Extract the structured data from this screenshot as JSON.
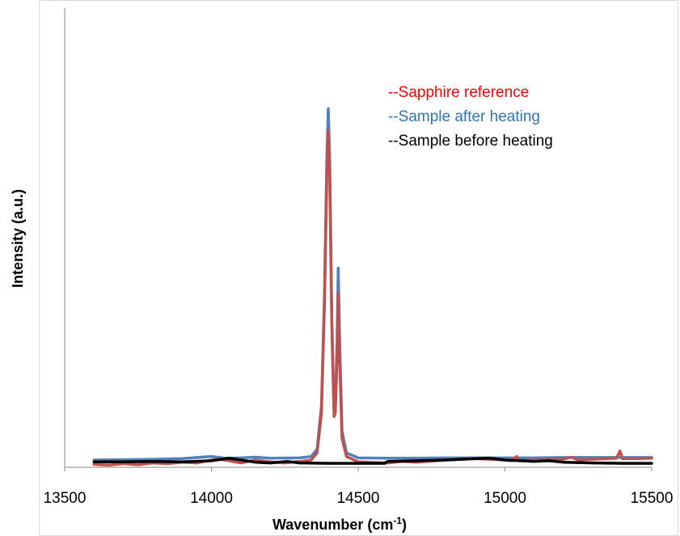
{
  "chart_data": {
    "type": "line",
    "title": "",
    "xlabel": "Wavenumber (cm",
    "xlabel_sup": "-1",
    "xlabel_tail": ")",
    "ylabel": "Intensity (a.u.)",
    "xlim": [
      13500,
      15500
    ],
    "ylim": [
      0,
      1.0
    ],
    "x_ticks": [
      "13500",
      "14000",
      "14500",
      "15000",
      "15500"
    ],
    "x_tick_values": [
      13500,
      14000,
      14500,
      15000,
      15500
    ],
    "y_ticks_shown": false,
    "grid": false,
    "legend_placement": "top-right",
    "series": [
      {
        "name": "--Sapphire reference",
        "color": "#c0504d",
        "points": [
          [
            13600,
            0.008
          ],
          [
            13650,
            0.006
          ],
          [
            13700,
            0.01
          ],
          [
            13750,
            0.007
          ],
          [
            13800,
            0.012
          ],
          [
            13850,
            0.01
          ],
          [
            13900,
            0.014
          ],
          [
            13950,
            0.012
          ],
          [
            14000,
            0.02
          ],
          [
            14030,
            0.022
          ],
          [
            14060,
            0.018
          ],
          [
            14100,
            0.012
          ],
          [
            14150,
            0.02
          ],
          [
            14200,
            0.015
          ],
          [
            14250,
            0.012
          ],
          [
            14300,
            0.016
          ],
          [
            14340,
            0.02
          ],
          [
            14360,
            0.04
          ],
          [
            14375,
            0.15
          ],
          [
            14385,
            0.45
          ],
          [
            14393,
            0.8
          ],
          [
            14398,
            0.93
          ],
          [
            14403,
            0.8
          ],
          [
            14410,
            0.4
          ],
          [
            14418,
            0.14
          ],
          [
            14422,
            0.15
          ],
          [
            14428,
            0.3
          ],
          [
            14432,
            0.48
          ],
          [
            14437,
            0.3
          ],
          [
            14445,
            0.08
          ],
          [
            14460,
            0.03
          ],
          [
            14500,
            0.015
          ],
          [
            14600,
            0.012
          ],
          [
            14650,
            0.016
          ],
          [
            14700,
            0.014
          ],
          [
            14800,
            0.02
          ],
          [
            14900,
            0.024
          ],
          [
            14950,
            0.022
          ],
          [
            15000,
            0.02
          ],
          [
            15020,
            0.018
          ],
          [
            15040,
            0.03
          ],
          [
            15050,
            0.018
          ],
          [
            15100,
            0.02
          ],
          [
            15200,
            0.022
          ],
          [
            15225,
            0.028
          ],
          [
            15250,
            0.02
          ],
          [
            15300,
            0.022
          ],
          [
            15350,
            0.024
          ],
          [
            15380,
            0.025
          ],
          [
            15392,
            0.045
          ],
          [
            15400,
            0.024
          ],
          [
            15450,
            0.024
          ],
          [
            15500,
            0.025
          ]
        ]
      },
      {
        "name": "--Sample after heating",
        "color": "#4f81bd",
        "points": [
          [
            13600,
            0.02
          ],
          [
            13700,
            0.021
          ],
          [
            13800,
            0.022
          ],
          [
            13900,
            0.024
          ],
          [
            14000,
            0.03
          ],
          [
            14050,
            0.025
          ],
          [
            14100,
            0.026
          ],
          [
            14150,
            0.028
          ],
          [
            14200,
            0.025
          ],
          [
            14300,
            0.026
          ],
          [
            14340,
            0.03
          ],
          [
            14360,
            0.05
          ],
          [
            14375,
            0.17
          ],
          [
            14385,
            0.48
          ],
          [
            14393,
            0.85
          ],
          [
            14398,
            0.99
          ],
          [
            14403,
            0.85
          ],
          [
            14410,
            0.42
          ],
          [
            14418,
            0.15
          ],
          [
            14422,
            0.17
          ],
          [
            14428,
            0.35
          ],
          [
            14432,
            0.55
          ],
          [
            14437,
            0.35
          ],
          [
            14445,
            0.1
          ],
          [
            14460,
            0.04
          ],
          [
            14500,
            0.026
          ],
          [
            14600,
            0.025
          ],
          [
            14700,
            0.025
          ],
          [
            14800,
            0.026
          ],
          [
            14900,
            0.026
          ],
          [
            15000,
            0.026
          ],
          [
            15100,
            0.026
          ],
          [
            15200,
            0.027
          ],
          [
            15300,
            0.027
          ],
          [
            15400,
            0.027
          ],
          [
            15500,
            0.027
          ]
        ]
      },
      {
        "name": "--Sample before heating",
        "color": "#000000",
        "points": [
          [
            13600,
            0.015
          ],
          [
            13700,
            0.015
          ],
          [
            13800,
            0.016
          ],
          [
            13900,
            0.015
          ],
          [
            14000,
            0.018
          ],
          [
            14060,
            0.025
          ],
          [
            14100,
            0.02
          ],
          [
            14150,
            0.014
          ],
          [
            14200,
            0.012
          ],
          [
            14260,
            0.016
          ],
          [
            14300,
            0.012
          ],
          [
            14400,
            0.011
          ],
          [
            14500,
            0.011
          ],
          [
            14590,
            0.011
          ],
          [
            14600,
            0.016
          ],
          [
            14700,
            0.018
          ],
          [
            14800,
            0.02
          ],
          [
            14900,
            0.024
          ],
          [
            14950,
            0.025
          ],
          [
            15000,
            0.02
          ],
          [
            15100,
            0.016
          ],
          [
            15150,
            0.018
          ],
          [
            15200,
            0.014
          ],
          [
            15300,
            0.012
          ],
          [
            15400,
            0.011
          ],
          [
            15500,
            0.011
          ]
        ]
      }
    ]
  }
}
